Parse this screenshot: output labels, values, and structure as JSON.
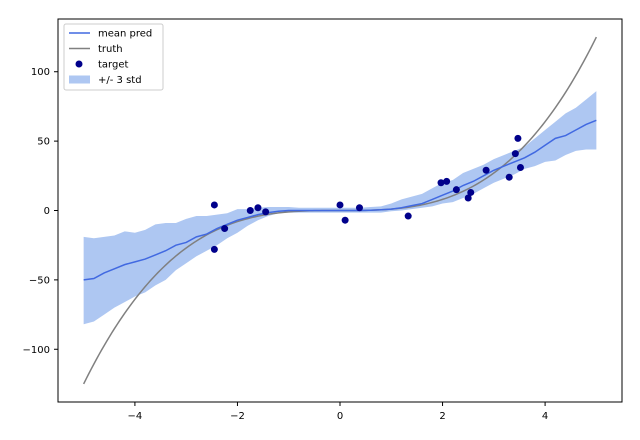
{
  "chart_data": {
    "type": "line",
    "title": "",
    "xlabel": "",
    "ylabel": "",
    "xlim": [
      -5.5,
      5.5
    ],
    "ylim": [
      -138,
      138
    ],
    "xticks": [
      -4,
      -2,
      0,
      2,
      4
    ],
    "yticks": [
      -100,
      -50,
      0,
      50,
      100
    ],
    "xtick_labels": [
      "−4",
      "−2",
      "0",
      "2",
      "4"
    ],
    "ytick_labels": [
      "−100",
      "−50",
      "0",
      "50",
      "100"
    ],
    "grid": false,
    "legend_position": "upper-left",
    "colors": {
      "mean": "#4169e1",
      "truth": "#808080",
      "target": "#00008b",
      "band": "#aec7f2"
    },
    "legend": [
      {
        "label": "mean pred",
        "kind": "line",
        "color_key": "mean"
      },
      {
        "label": "truth",
        "kind": "line",
        "color_key": "truth"
      },
      {
        "label": "target",
        "kind": "marker",
        "color_key": "target"
      },
      {
        "label": "+/- 3 std",
        "kind": "patch",
        "color_key": "band"
      }
    ],
    "truth": {
      "name": "truth",
      "function": "x^3",
      "x_range": [
        -5,
        5
      ]
    },
    "mean_pred": {
      "name": "mean pred",
      "x": [
        -5.0,
        -4.8,
        -4.6,
        -4.4,
        -4.2,
        -4.0,
        -3.8,
        -3.6,
        -3.4,
        -3.2,
        -3.0,
        -2.8,
        -2.6,
        -2.4,
        -2.2,
        -2.0,
        -1.8,
        -1.6,
        -1.4,
        -1.2,
        -1.0,
        -0.8,
        -0.6,
        -0.4,
        -0.2,
        0.0,
        0.2,
        0.4,
        0.6,
        0.8,
        1.0,
        1.2,
        1.4,
        1.6,
        1.8,
        2.0,
        2.2,
        2.4,
        2.6,
        2.8,
        3.0,
        3.2,
        3.4,
        3.6,
        3.8,
        4.0,
        4.2,
        4.4,
        4.6,
        4.8,
        5.0
      ],
      "values": [
        -50,
        -49,
        -45,
        -42,
        -39,
        -37,
        -35,
        -32,
        -29,
        -25,
        -23,
        -19,
        -17,
        -13,
        -10,
        -7,
        -5,
        -3,
        -1.5,
        -0.5,
        0,
        0,
        0,
        0,
        0,
        0,
        0,
        0,
        0.2,
        0.5,
        1,
        2,
        3.5,
        5,
        8,
        11,
        14,
        18,
        21,
        25,
        29,
        32,
        35,
        38,
        42,
        47,
        52,
        54,
        58,
        62,
        65
      ]
    },
    "band": {
      "name": "+/- 3 std",
      "x": [
        -5.0,
        -4.8,
        -4.6,
        -4.4,
        -4.2,
        -4.0,
        -3.8,
        -3.6,
        -3.4,
        -3.2,
        -3.0,
        -2.8,
        -2.6,
        -2.4,
        -2.2,
        -2.0,
        -1.8,
        -1.6,
        -1.4,
        -1.2,
        -1.0,
        -0.8,
        -0.6,
        -0.4,
        -0.2,
        0.0,
        0.2,
        0.4,
        0.6,
        0.8,
        1.0,
        1.2,
        1.4,
        1.6,
        1.8,
        2.0,
        2.2,
        2.4,
        2.6,
        2.8,
        3.0,
        3.2,
        3.4,
        3.6,
        3.8,
        4.0,
        4.2,
        4.4,
        4.6,
        4.8,
        5.0
      ],
      "upper": [
        -19,
        -20,
        -19,
        -18,
        -15,
        -16,
        -14,
        -10,
        -9,
        -9,
        -6,
        -4,
        -4,
        -3,
        -2,
        1,
        1,
        2,
        2.5,
        2.5,
        2.5,
        2,
        2,
        2,
        2,
        2,
        2,
        2,
        2.5,
        3,
        5,
        8,
        10,
        12,
        16,
        20,
        22,
        27,
        30,
        33,
        37,
        40,
        43,
        46,
        52,
        58,
        64,
        70,
        74,
        80,
        86
      ],
      "lower": [
        -82,
        -80,
        -75,
        -70,
        -66,
        -62,
        -59,
        -54,
        -50,
        -43,
        -38,
        -33,
        -29,
        -25,
        -20,
        -16,
        -11,
        -7,
        -4,
        -2,
        -1.5,
        -1.5,
        -1.5,
        -1.5,
        -1.5,
        -1.5,
        -1.5,
        -1.5,
        -1.5,
        -1.5,
        -0.5,
        0,
        1,
        2,
        3,
        5,
        6,
        9,
        12,
        16,
        20,
        23,
        26,
        30,
        32,
        35,
        36,
        40,
        43,
        44,
        44
      ]
    },
    "target": {
      "name": "target",
      "x": [
        -2.45,
        -2.45,
        -2.25,
        -1.75,
        -1.6,
        -1.45,
        0.0,
        0.1,
        0.38,
        1.33,
        1.97,
        2.08,
        2.27,
        2.5,
        2.55,
        2.85,
        3.3,
        3.42,
        3.47,
        3.52
      ],
      "y": [
        4,
        -28,
        -13,
        0,
        2,
        -1,
        4,
        -7,
        2,
        -4,
        20,
        21,
        15,
        9,
        13,
        29,
        24,
        41,
        52,
        31
      ]
    }
  }
}
